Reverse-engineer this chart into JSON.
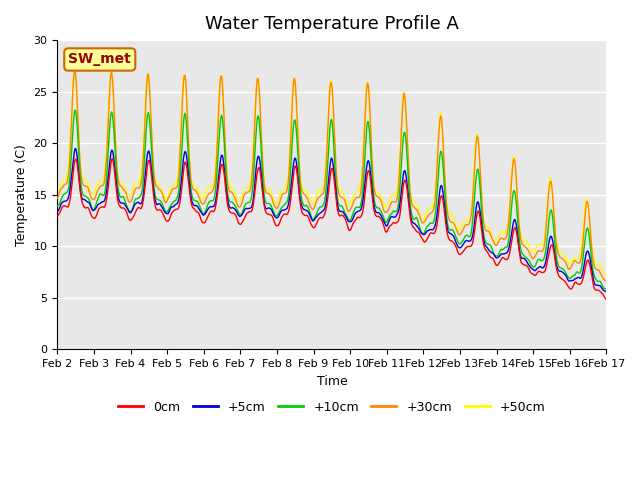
{
  "title": "Water Temperature Profile A",
  "xlabel": "Time",
  "ylabel": "Temperature (C)",
  "ylim": [
    0,
    30
  ],
  "xlim_days": [
    2,
    17
  ],
  "bg_color": "#e8e8e8",
  "fig_bg": "#ffffff",
  "legend_label": "SW_met",
  "legend_box_color": "#ffff99",
  "legend_box_edge": "#cc6600",
  "legend_text_color": "#990000",
  "line_colors": {
    "0cm": "#ff0000",
    "+5cm": "#0000dd",
    "+10cm": "#00cc00",
    "+30cm": "#ff8800",
    "+50cm": "#ffff00"
  },
  "series_labels": [
    "0cm",
    "+5cm",
    "+10cm",
    "+30cm",
    "+50cm"
  ],
  "yticks": [
    0,
    5,
    10,
    15,
    20,
    25,
    30
  ],
  "xtick_labels": [
    "Feb 2",
    "Feb 3",
    "Feb 4",
    "Feb 5",
    "Feb 6",
    "Feb 7",
    "Feb 8",
    "Feb 9",
    "Feb 10",
    "Feb 11",
    "Feb 12",
    "Feb 13",
    "Feb 14",
    "Feb 15",
    "Feb 16",
    "Feb 17"
  ],
  "title_fontsize": 13,
  "label_fontsize": 9,
  "tick_fontsize": 8
}
